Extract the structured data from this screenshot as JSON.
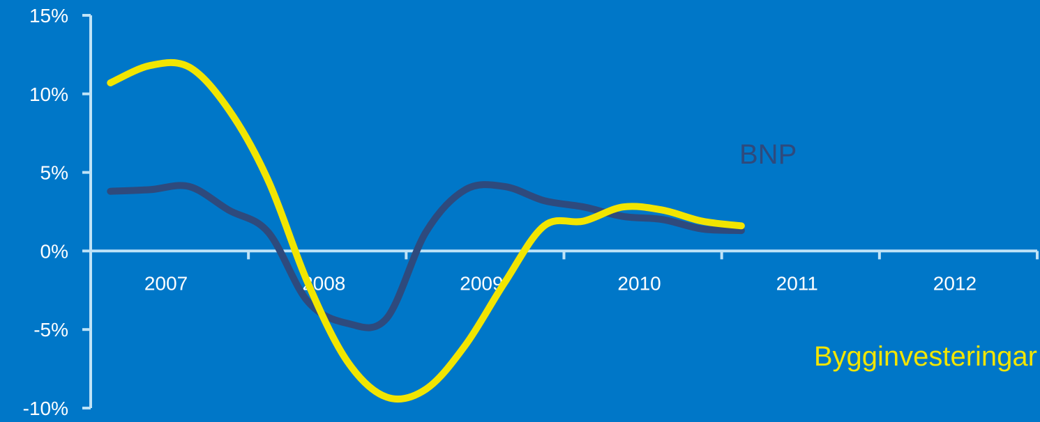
{
  "colors": {
    "background": "#0077C8",
    "axis": "#BFE3F7",
    "tick_text": "#FFFFFF"
  },
  "chart_data": {
    "type": "line",
    "title": "",
    "xlabel": "",
    "ylabel": "",
    "ylim": [
      -10,
      15
    ],
    "yticks": [
      -10,
      -5,
      0,
      5,
      10,
      15
    ],
    "ytick_labels": [
      "-10%",
      "-5%",
      "0%",
      "5%",
      "10%",
      "15%"
    ],
    "categories": [
      "2007",
      "2008",
      "2009",
      "2010",
      "2011",
      "2012"
    ],
    "xlim": [
      2007,
      2013
    ],
    "grid": false,
    "legend": "none",
    "series": [
      {
        "name": "BNP",
        "color": "#2E4A7D",
        "points": [
          [
            2007.125,
            3.8
          ],
          [
            2007.375,
            3.9
          ],
          [
            2007.625,
            4.1
          ],
          [
            2007.875,
            2.6
          ],
          [
            2008.125,
            1.2
          ],
          [
            2008.375,
            -3.2
          ],
          [
            2008.625,
            -4.6
          ],
          [
            2008.875,
            -4.3
          ],
          [
            2009.125,
            1.2
          ],
          [
            2009.375,
            3.9
          ],
          [
            2009.625,
            4.1
          ],
          [
            2009.875,
            3.2
          ],
          [
            2010.125,
            2.8
          ],
          [
            2010.375,
            2.2
          ],
          [
            2010.625,
            2.0
          ],
          [
            2010.875,
            1.4
          ],
          [
            2011.125,
            1.3
          ]
        ]
      },
      {
        "name": "Bygginvesteringar",
        "color": "#F2E500",
        "points": [
          [
            2007.125,
            10.7
          ],
          [
            2007.375,
            11.8
          ],
          [
            2007.625,
            11.7
          ],
          [
            2007.875,
            9.0
          ],
          [
            2008.125,
            4.5
          ],
          [
            2008.375,
            -2.0
          ],
          [
            2008.625,
            -7.0
          ],
          [
            2008.875,
            -9.3
          ],
          [
            2009.125,
            -8.8
          ],
          [
            2009.375,
            -6.0
          ],
          [
            2009.625,
            -2.0
          ],
          [
            2009.875,
            1.6
          ],
          [
            2010.125,
            1.9
          ],
          [
            2010.375,
            2.8
          ],
          [
            2010.625,
            2.6
          ],
          [
            2010.875,
            1.9
          ],
          [
            2011.125,
            1.6
          ]
        ]
      }
    ]
  }
}
